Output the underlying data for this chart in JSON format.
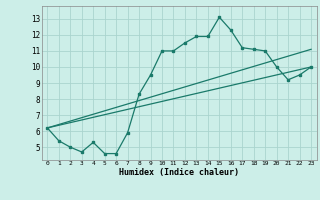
{
  "title": "",
  "xlabel": "Humidex (Indice chaleur)",
  "bg_color": "#cceee8",
  "grid_color": "#aad4ce",
  "line_color": "#1a7a6a",
  "xlim": [
    -0.5,
    23.5
  ],
  "ylim": [
    4.2,
    13.8
  ],
  "yticks": [
    5,
    6,
    7,
    8,
    9,
    10,
    11,
    12,
    13
  ],
  "xticks": [
    0,
    1,
    2,
    3,
    4,
    5,
    6,
    7,
    8,
    9,
    10,
    11,
    12,
    13,
    14,
    15,
    16,
    17,
    18,
    19,
    20,
    21,
    22,
    23
  ],
  "series1_x": [
    0,
    1,
    2,
    3,
    4,
    5,
    6,
    7,
    8,
    9,
    10,
    11,
    12,
    13,
    14,
    15,
    16,
    17,
    18,
    19,
    20,
    21,
    22,
    23
  ],
  "series1_y": [
    6.2,
    5.4,
    5.0,
    4.7,
    5.3,
    4.6,
    4.6,
    5.9,
    8.3,
    9.5,
    11.0,
    11.0,
    11.5,
    11.9,
    11.9,
    13.1,
    12.3,
    11.2,
    11.1,
    11.0,
    10.0,
    9.2,
    9.5,
    10.0
  ],
  "series2_x": [
    0,
    23
  ],
  "series2_y": [
    6.2,
    11.1
  ],
  "series3_x": [
    0,
    23
  ],
  "series3_y": [
    6.2,
    10.0
  ]
}
